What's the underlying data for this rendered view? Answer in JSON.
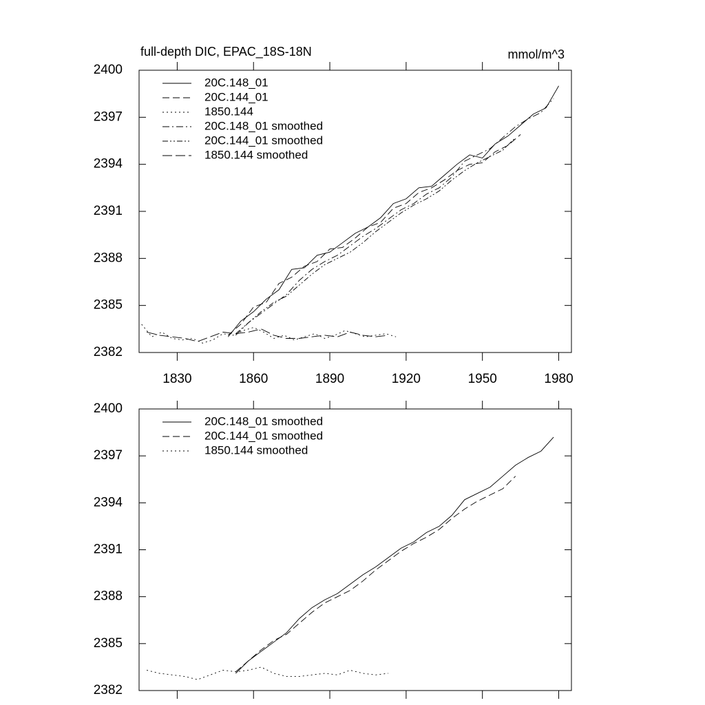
{
  "chart_data": [
    {
      "type": "line",
      "title": "full-depth DIC, EPAC_18S-18N",
      "units": "mmol/m^3",
      "xlim": [
        1815,
        1985
      ],
      "xticks": [
        1830,
        1860,
        1890,
        1920,
        1950,
        1980
      ],
      "xtick_labels": true,
      "ylim": [
        2382,
        2400
      ],
      "yticks": [
        2382,
        2385,
        2388,
        2391,
        2394,
        2397,
        2400
      ],
      "legend": "upper-left",
      "series": [
        {
          "name": "20C.148_01",
          "color": "#000000",
          "style": "solid",
          "x": [
            1850,
            1855,
            1860,
            1865,
            1870,
            1875,
            1880,
            1885,
            1890,
            1895,
            1900,
            1905,
            1910,
            1915,
            1920,
            1925,
            1930,
            1935,
            1940,
            1945,
            1950,
            1955,
            1960,
            1965,
            1970,
            1975,
            1980
          ],
          "values": [
            2383.0,
            2384.0,
            2384.6,
            2385.4,
            2386.0,
            2387.3,
            2387.4,
            2388.2,
            2388.4,
            2389.0,
            2389.6,
            2390.0,
            2390.6,
            2391.5,
            2391.8,
            2392.5,
            2392.6,
            2393.3,
            2394.0,
            2394.6,
            2394.4,
            2395.3,
            2395.8,
            2396.5,
            2397.2,
            2397.6,
            2399.0
          ]
        },
        {
          "name": "20C.144_01",
          "color": "#000000",
          "style": "dash",
          "x": [
            1850,
            1855,
            1860,
            1865,
            1870,
            1875,
            1880,
            1885,
            1890,
            1895,
            1900,
            1905,
            1910,
            1915,
            1920,
            1925,
            1930,
            1935,
            1940,
            1945,
            1950,
            1955,
            1960,
            1965
          ],
          "values": [
            2383.1,
            2383.8,
            2384.9,
            2385.2,
            2386.4,
            2386.8,
            2387.5,
            2387.8,
            2388.6,
            2388.7,
            2389.3,
            2390.0,
            2390.3,
            2391.2,
            2391.5,
            2392.2,
            2392.5,
            2393.0,
            2393.6,
            2394.0,
            2394.1,
            2394.8,
            2395.2,
            2395.9
          ]
        },
        {
          "name": "1850.144",
          "color": "#000000",
          "style": "dot",
          "x": [
            1816,
            1820,
            1824,
            1828,
            1832,
            1836,
            1840,
            1844,
            1848,
            1852,
            1856,
            1860,
            1864,
            1868,
            1872,
            1876,
            1880,
            1884,
            1888,
            1892,
            1896,
            1900,
            1904,
            1908,
            1912,
            1916
          ],
          "values": [
            2383.8,
            2383.0,
            2383.3,
            2382.9,
            2382.8,
            2382.9,
            2382.6,
            2382.8,
            2383.2,
            2383.1,
            2383.4,
            2383.6,
            2383.3,
            2382.9,
            2383.1,
            2382.8,
            2383.0,
            2383.2,
            2382.9,
            2383.1,
            2383.4,
            2383.2,
            2383.0,
            2383.1,
            2383.2,
            2383.0
          ]
        },
        {
          "name": "20C.148_01 smoothed",
          "color": "#000000",
          "style": "dashdot",
          "x": [
            1853,
            1858,
            1863,
            1868,
            1873,
            1878,
            1883,
            1888,
            1893,
            1898,
            1903,
            1908,
            1913,
            1918,
            1923,
            1928,
            1933,
            1938,
            1943,
            1948,
            1953,
            1958,
            1963,
            1968,
            1973,
            1978
          ],
          "values": [
            2383.1,
            2383.9,
            2384.5,
            2385.1,
            2385.7,
            2386.6,
            2387.3,
            2387.8,
            2388.2,
            2388.8,
            2389.4,
            2389.9,
            2390.5,
            2391.1,
            2391.5,
            2392.1,
            2392.5,
            2393.2,
            2394.2,
            2394.6,
            2395.0,
            2395.7,
            2396.4,
            2396.9,
            2397.3,
            2398.2
          ]
        },
        {
          "name": "20C.144_01 smoothed",
          "color": "#000000",
          "style": "dashdotdot",
          "x": [
            1853,
            1858,
            1863,
            1868,
            1873,
            1878,
            1883,
            1888,
            1893,
            1898,
            1903,
            1908,
            1913,
            1918,
            1923,
            1928,
            1933,
            1938,
            1943,
            1948,
            1953,
            1958,
            1963
          ],
          "values": [
            2383.2,
            2383.9,
            2384.6,
            2385.2,
            2385.6,
            2386.3,
            2387.0,
            2387.6,
            2388.0,
            2388.4,
            2389.0,
            2389.7,
            2390.3,
            2390.9,
            2391.4,
            2391.8,
            2392.3,
            2393.0,
            2393.6,
            2394.1,
            2394.5,
            2394.9,
            2395.7
          ]
        },
        {
          "name": "1850.144 smoothed",
          "color": "#000000",
          "style": "longdash",
          "x": [
            1818,
            1823,
            1828,
            1833,
            1838,
            1843,
            1848,
            1853,
            1858,
            1863,
            1868,
            1873,
            1878,
            1883,
            1888,
            1893,
            1898,
            1903,
            1908,
            1913
          ],
          "values": [
            2383.3,
            2383.1,
            2383.0,
            2382.9,
            2382.7,
            2383.0,
            2383.3,
            2383.2,
            2383.3,
            2383.5,
            2383.1,
            2382.9,
            2382.9,
            2383.0,
            2383.1,
            2383.0,
            2383.3,
            2383.1,
            2383.0,
            2383.1
          ]
        }
      ]
    },
    {
      "type": "line",
      "xlim": [
        1815,
        1985
      ],
      "xticks": [
        1830,
        1860,
        1890,
        1920,
        1950,
        1980
      ],
      "xtick_labels": false,
      "ylim": [
        2382,
        2400
      ],
      "yticks": [
        2382,
        2385,
        2388,
        2391,
        2394,
        2397,
        2400
      ],
      "legend": "upper-left",
      "series": [
        {
          "name": "20C.148_01 smoothed",
          "color": "#000000",
          "style": "solid",
          "x": [
            1853,
            1858,
            1863,
            1868,
            1873,
            1878,
            1883,
            1888,
            1893,
            1898,
            1903,
            1908,
            1913,
            1918,
            1923,
            1928,
            1933,
            1938,
            1943,
            1948,
            1953,
            1958,
            1963,
            1968,
            1973,
            1978
          ],
          "values": [
            2383.1,
            2383.9,
            2384.5,
            2385.1,
            2385.7,
            2386.6,
            2387.3,
            2387.8,
            2388.2,
            2388.8,
            2389.4,
            2389.9,
            2390.5,
            2391.1,
            2391.5,
            2392.1,
            2392.5,
            2393.2,
            2394.2,
            2394.6,
            2395.0,
            2395.7,
            2396.4,
            2396.9,
            2397.3,
            2398.2
          ]
        },
        {
          "name": "20C.144_01 smoothed",
          "color": "#000000",
          "style": "dash",
          "x": [
            1853,
            1858,
            1863,
            1868,
            1873,
            1878,
            1883,
            1888,
            1893,
            1898,
            1903,
            1908,
            1913,
            1918,
            1923,
            1928,
            1933,
            1938,
            1943,
            1948,
            1953,
            1958,
            1963
          ],
          "values": [
            2383.2,
            2383.9,
            2384.6,
            2385.2,
            2385.6,
            2386.3,
            2387.0,
            2387.6,
            2388.0,
            2388.4,
            2389.0,
            2389.7,
            2390.3,
            2390.9,
            2391.4,
            2391.8,
            2392.3,
            2393.0,
            2393.6,
            2394.1,
            2394.5,
            2394.9,
            2395.7
          ]
        },
        {
          "name": "1850.144 smoothed",
          "color": "#000000",
          "style": "dot",
          "x": [
            1818,
            1823,
            1828,
            1833,
            1838,
            1843,
            1848,
            1853,
            1858,
            1863,
            1868,
            1873,
            1878,
            1883,
            1888,
            1893,
            1898,
            1903,
            1908,
            1913
          ],
          "values": [
            2383.3,
            2383.1,
            2383.0,
            2382.9,
            2382.7,
            2383.0,
            2383.3,
            2383.2,
            2383.3,
            2383.5,
            2383.1,
            2382.9,
            2382.9,
            2383.0,
            2383.1,
            2383.0,
            2383.3,
            2383.1,
            2383.0,
            2383.1
          ]
        }
      ]
    }
  ]
}
